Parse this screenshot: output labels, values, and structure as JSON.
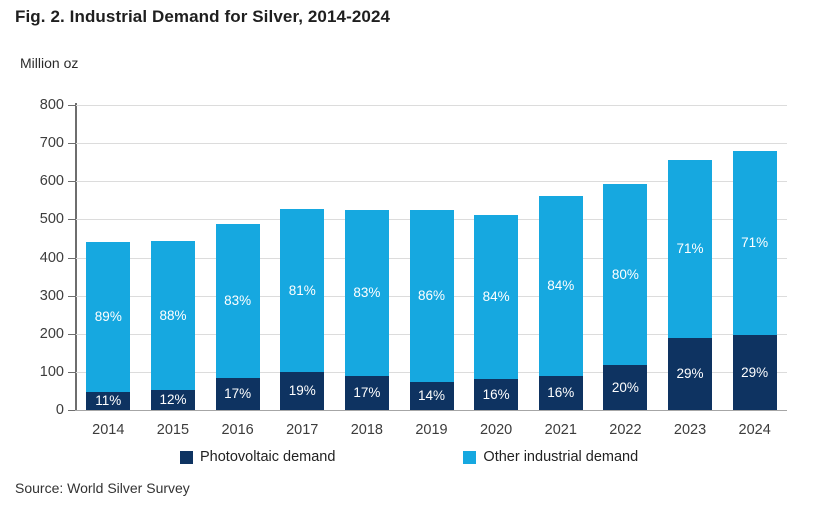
{
  "chart_data": {
    "type": "bar",
    "stacked": true,
    "title": "Fig. 2. Industrial Demand for Silver, 2014-2024",
    "ylabel": "Million oz",
    "xlabel": "",
    "ylim": [
      0,
      800
    ],
    "ytick_step": 100,
    "grid": true,
    "legend_position": "bottom",
    "categories": [
      "2014",
      "2015",
      "2016",
      "2017",
      "2018",
      "2019",
      "2020",
      "2021",
      "2022",
      "2023",
      "2024"
    ],
    "series": [
      {
        "name": "Photovoltaic demand",
        "color": "#0e3361",
        "values": [
          48,
          53,
          83,
          100,
          89,
          74,
          82,
          90,
          119,
          190,
          197
        ],
        "labels": [
          "11%",
          "12%",
          "17%",
          "19%",
          "17%",
          "14%",
          "16%",
          "16%",
          "20%",
          "29%",
          "29%"
        ]
      },
      {
        "name": "Other industrial demand",
        "color": "#16a8e0",
        "values": [
          392,
          390,
          406,
          426,
          436,
          451,
          429,
          472,
          474,
          467,
          483
        ],
        "labels": [
          "89%",
          "88%",
          "83%",
          "81%",
          "83%",
          "86%",
          "84%",
          "84%",
          "80%",
          "71%",
          "71%"
        ]
      }
    ],
    "totals": [
      440,
      443,
      489,
      526,
      525,
      525,
      511,
      562,
      593,
      657,
      680
    ]
  },
  "source": "Source: World Silver Survey",
  "style_colors": {
    "gridline": "#dcdcdc",
    "baseline": "#a6a6a6",
    "axis_line": "#6e6e6e",
    "tick_text": "#3c3c3c",
    "bar_label_text": "#ffffff"
  }
}
